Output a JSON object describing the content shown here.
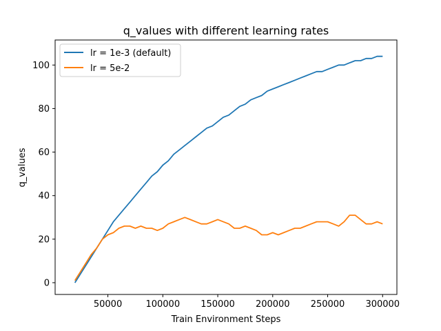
{
  "chart_data": {
    "type": "line",
    "title": "q_values with different learning rates",
    "xlabel": "Train Environment Steps",
    "ylabel": "q_values",
    "xlim": [
      2000,
      313000
    ],
    "ylim": [
      -5.4,
      111.5
    ],
    "x_ticks": [
      50000,
      100000,
      150000,
      200000,
      250000,
      300000
    ],
    "y_ticks": [
      0,
      20,
      40,
      60,
      80,
      100
    ],
    "grid": false,
    "legend_position": "top-left",
    "series": [
      {
        "name": "lr = 1e-3 (default)",
        "color": "#1f77b4",
        "x": [
          20000,
          25000,
          30000,
          35000,
          40000,
          45000,
          50000,
          55000,
          60000,
          65000,
          70000,
          75000,
          80000,
          85000,
          90000,
          95000,
          100000,
          105000,
          110000,
          115000,
          120000,
          125000,
          130000,
          135000,
          140000,
          145000,
          150000,
          155000,
          160000,
          165000,
          170000,
          175000,
          180000,
          185000,
          190000,
          195000,
          200000,
          205000,
          210000,
          215000,
          220000,
          225000,
          230000,
          235000,
          240000,
          245000,
          250000,
          255000,
          260000,
          265000,
          270000,
          275000,
          280000,
          285000,
          290000,
          295000,
          300000
        ],
        "y": [
          0,
          4,
          8,
          12,
          16,
          20,
          24,
          28,
          31,
          34,
          37,
          40,
          43,
          46,
          49,
          51,
          54,
          56,
          59,
          61,
          63,
          65,
          67,
          69,
          71,
          72,
          74,
          76,
          77,
          79,
          81,
          82,
          84,
          85,
          86,
          88,
          89,
          90,
          91,
          92,
          93,
          94,
          95,
          96,
          97,
          97,
          98,
          99,
          100,
          100,
          101,
          102,
          102,
          103,
          103,
          104,
          104
        ]
      },
      {
        "name": "lr = 5e-2",
        "color": "#ff7f0e",
        "x": [
          20000,
          25000,
          30000,
          35000,
          40000,
          45000,
          50000,
          55000,
          60000,
          65000,
          70000,
          75000,
          80000,
          85000,
          90000,
          95000,
          100000,
          105000,
          110000,
          115000,
          120000,
          125000,
          130000,
          135000,
          140000,
          145000,
          150000,
          155000,
          160000,
          165000,
          170000,
          175000,
          180000,
          185000,
          190000,
          195000,
          200000,
          205000,
          210000,
          215000,
          220000,
          225000,
          230000,
          235000,
          240000,
          245000,
          250000,
          255000,
          260000,
          265000,
          270000,
          275000,
          280000,
          285000,
          290000,
          295000,
          300000
        ],
        "y": [
          1,
          5,
          9,
          13,
          16,
          20,
          22,
          23,
          25,
          26,
          26,
          25,
          26,
          25,
          25,
          24,
          25,
          27,
          28,
          29,
          30,
          29,
          28,
          27,
          27,
          28,
          29,
          28,
          27,
          25,
          25,
          26,
          25,
          24,
          22,
          22,
          23,
          22,
          23,
          24,
          25,
          25,
          26,
          27,
          28,
          28,
          28,
          27,
          26,
          28,
          31,
          31,
          29,
          27,
          27,
          28,
          27
        ]
      }
    ]
  }
}
